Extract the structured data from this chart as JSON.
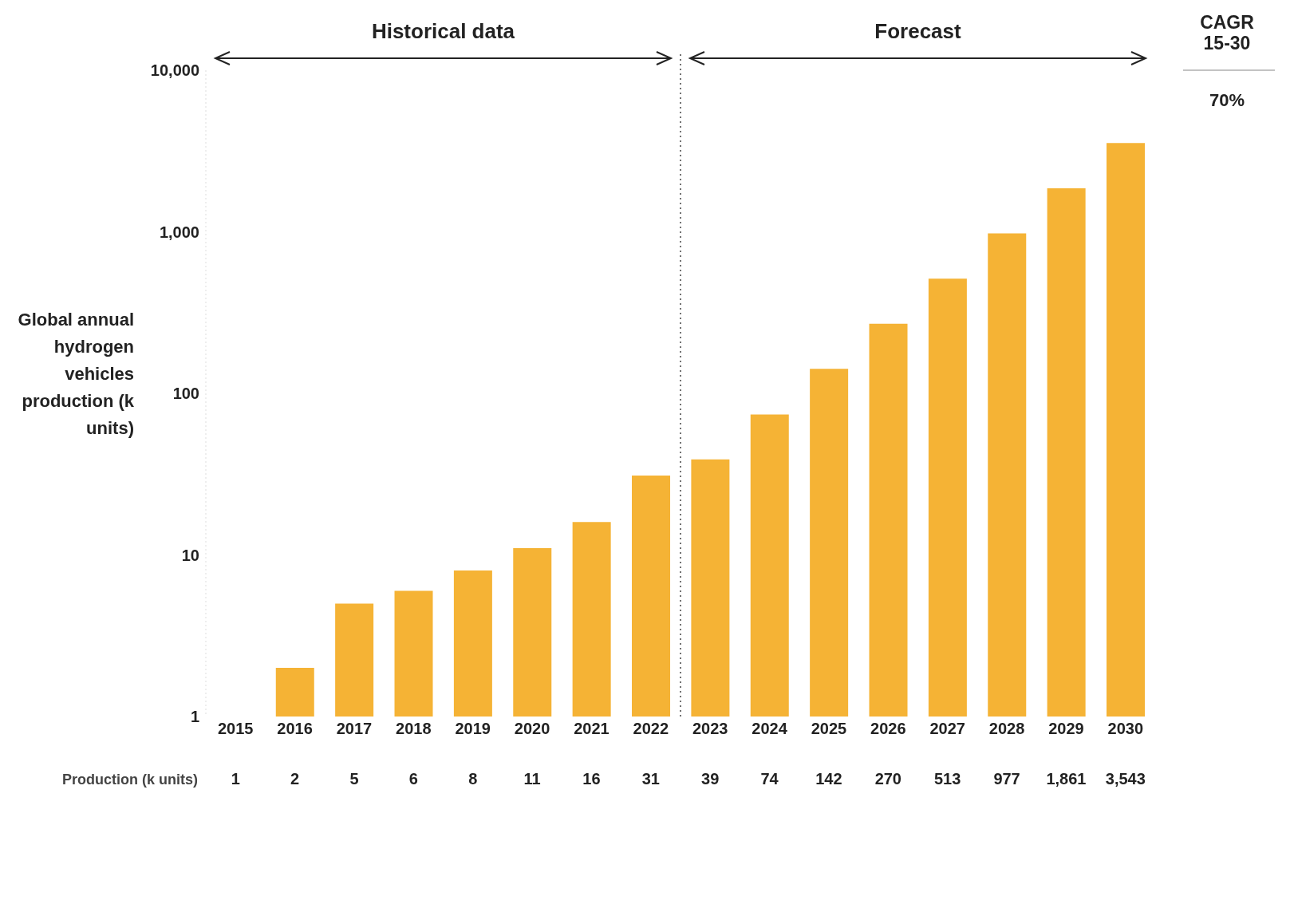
{
  "chart_data": {
    "type": "bar",
    "ylabel": "Global annual hydrogen vehicles production (k units)",
    "categories": [
      "2015",
      "2016",
      "2017",
      "2018",
      "2019",
      "2020",
      "2021",
      "2022",
      "2023",
      "2024",
      "2025",
      "2026",
      "2027",
      "2028",
      "2029",
      "2030"
    ],
    "values": [
      1,
      2,
      5,
      6,
      8,
      11,
      16,
      31,
      39,
      74,
      142,
      270,
      513,
      977,
      1861,
      3543
    ],
    "value_labels": [
      "1",
      "2",
      "5",
      "6",
      "8",
      "11",
      "16",
      "31",
      "39",
      "74",
      "142",
      "270",
      "513",
      "977",
      "1,861",
      "3,543"
    ],
    "color": "#f5b335",
    "log": true,
    "ylim": [
      1,
      10000
    ],
    "yticks": [
      {
        "value": 1,
        "label": "1"
      },
      {
        "value": 10,
        "label": "10"
      },
      {
        "value": 100,
        "label": "100"
      },
      {
        "value": 1000,
        "label": "1,000"
      },
      {
        "value": 10000,
        "label": "10,000"
      }
    ],
    "grid": false,
    "legend": false,
    "annotations": [
      "Historical data",
      "Forecast",
      "CAGR 15-30",
      "70%",
      "Production (k units)"
    ]
  }
}
